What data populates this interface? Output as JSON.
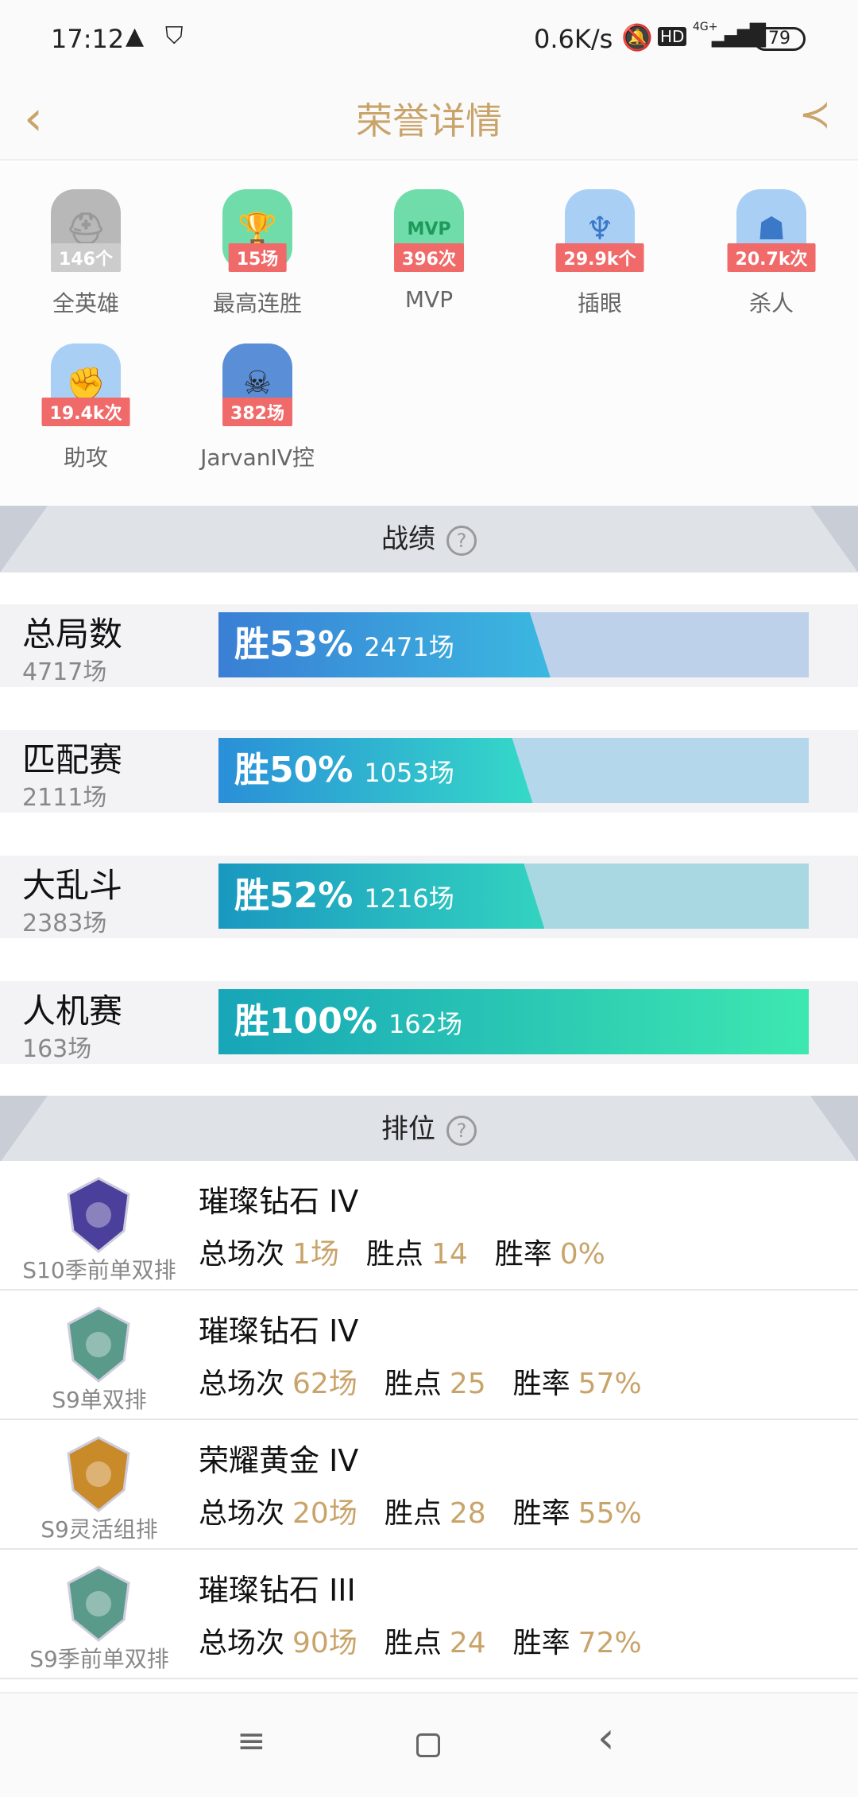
{
  "status": {
    "time": "17:12",
    "speed": "0.6K/s",
    "battery": "79",
    "network": "4G+"
  },
  "header": {
    "title": "荣誉详情",
    "back_icon": "chevron-left-icon",
    "share_icon": "share-icon"
  },
  "badges": [
    {
      "value": "146个",
      "label": "全英雄",
      "color": "#b8b8b8",
      "icon": "helmet-icon"
    },
    {
      "value": "15场",
      "label": "最高连胜",
      "color": "#6fdcaa",
      "icon": "trophy-icon"
    },
    {
      "value": "396次",
      "label": "MVP",
      "color": "#6fdcaa",
      "icon": "mvp-icon"
    },
    {
      "value": "29.9k个",
      "label": "插眼",
      "color": "#a9cff5",
      "icon": "ward-icon"
    },
    {
      "value": "20.7k次",
      "label": "杀人",
      "color": "#a9cff5",
      "icon": "kill-icon"
    },
    {
      "value": "19.4k次",
      "label": "助攻",
      "color": "#a9cff5",
      "icon": "fist-icon"
    },
    {
      "value": "382场",
      "label": "JarvanIV控",
      "color": "#5a8fd8",
      "icon": "champion-portrait-icon"
    }
  ],
  "stats_section": {
    "title": "战绩",
    "help": "?"
  },
  "stats": [
    {
      "name": "总局数",
      "count": "4717场",
      "win_label": "胜53%",
      "wins": "2471场",
      "win_rate": 53,
      "from": "#3a7fd5",
      "to": "#3bb8e0",
      "bg": "#bdd1ea"
    },
    {
      "name": "匹配赛",
      "count": "2111场",
      "win_label": "胜50%",
      "wins": "1053场",
      "win_rate": 50,
      "from": "#2a8fd8",
      "to": "#35d9c8",
      "bg": "#b5d7ec"
    },
    {
      "name": "大乱斗",
      "count": "2383场",
      "win_label": "胜52%",
      "wins": "1216场",
      "win_rate": 52,
      "from": "#1a98c0",
      "to": "#33d3c0",
      "bg": "#a9d8e3"
    },
    {
      "name": "人机赛",
      "count": "163场",
      "win_label": "胜100%",
      "wins": "162场",
      "win_rate": 100,
      "from": "#17a5b8",
      "to": "#3de8b0",
      "bg": "#a9e3d3"
    }
  ],
  "rank_section": {
    "title": "排位",
    "help": "?"
  },
  "ranks": [
    {
      "season": "S10季前单双排",
      "tier": "璀璨钻石 IV",
      "games_label": "总场次",
      "games": "1场",
      "points_label": "胜点",
      "points": "14",
      "rate_label": "胜率",
      "rate": "0%",
      "color": "#4a3f9a"
    },
    {
      "season": "S9单双排",
      "tier": "璀璨钻石 IV",
      "games_label": "总场次",
      "games": "62场",
      "points_label": "胜点",
      "points": "25",
      "rate_label": "胜率",
      "rate": "57%",
      "color": "#5a9a8a"
    },
    {
      "season": "S9灵活组排",
      "tier": "荣耀黄金 IV",
      "games_label": "总场次",
      "games": "20场",
      "points_label": "胜点",
      "points": "28",
      "rate_label": "胜率",
      "rate": "55%",
      "color": "#c98a2a"
    },
    {
      "season": "S9季前单双排",
      "tier": "璀璨钻石 III",
      "games_label": "总场次",
      "games": "90场",
      "points_label": "胜点",
      "points": "24",
      "rate_label": "胜率",
      "rate": "72%",
      "color": "#5a9a8a"
    }
  ]
}
